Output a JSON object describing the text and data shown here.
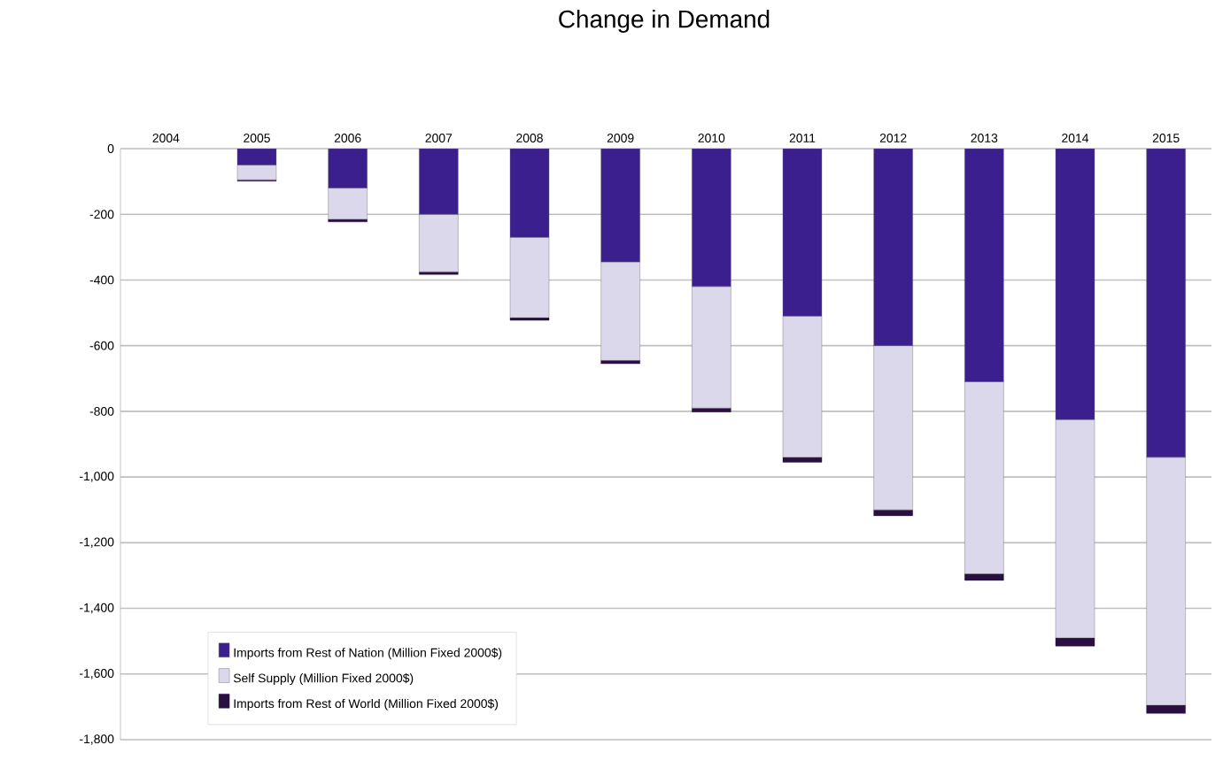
{
  "chart_data": {
    "type": "bar",
    "title": "Change in Demand",
    "stacked": true,
    "grid": "y",
    "legend": "bottom left",
    "categories": [
      "2004",
      "2005",
      "2006",
      "2007",
      "2008",
      "2009",
      "2010",
      "2011",
      "2012",
      "2013",
      "2014",
      "2015"
    ],
    "ylim": [
      -1800,
      0
    ],
    "yticks": [
      0,
      -200,
      -400,
      -600,
      -800,
      {
        "value": -1000,
        "label": "-1,000"
      },
      {
        "value": -1200,
        "label": "-1,200"
      },
      {
        "value": -1400,
        "label": "-1,400"
      },
      {
        "value": -1600,
        "label": "-1,600"
      },
      {
        "value": -1800,
        "label": "-1,800"
      }
    ],
    "series": [
      {
        "name": "Imports from Rest of Nation (Million Fixed 2000$)",
        "color": "#3b1f8f",
        "values": [
          0,
          -50,
          -120,
          -200,
          -270,
          -345,
          -420,
          -510,
          -600,
          -710,
          -825,
          -940
        ]
      },
      {
        "name": "Self Supply (Million Fixed 2000$)",
        "color": "#dcd8ec",
        "values": [
          0,
          -45,
          -95,
          -175,
          -245,
          -300,
          -370,
          -430,
          -500,
          -585,
          -665,
          -755
        ]
      },
      {
        "name": "Imports from Rest of World (Million Fixed 2000$)",
        "color": "#2a1040",
        "values": [
          0,
          -4,
          -8,
          -8,
          -8,
          -10,
          -12,
          -15,
          -18,
          -20,
          -25,
          -25
        ]
      }
    ]
  }
}
